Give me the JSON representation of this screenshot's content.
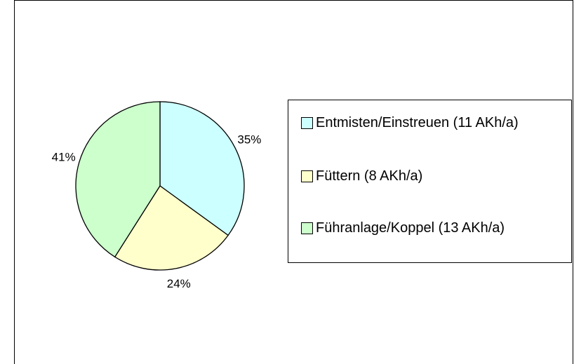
{
  "chart_data": {
    "type": "pie",
    "categories": [
      "Entmisten/Einstreuen (11 AKh/a)",
      "Füttern (8 AKh/a)",
      "Führanlage/Koppel (13 AKh/a)"
    ],
    "values": [
      35,
      24,
      41
    ],
    "value_labels": [
      "35%",
      "24%",
      "41%"
    ],
    "colors": [
      "#ccffff",
      "#ffffcc",
      "#ccffcc"
    ],
    "legend": "right"
  }
}
